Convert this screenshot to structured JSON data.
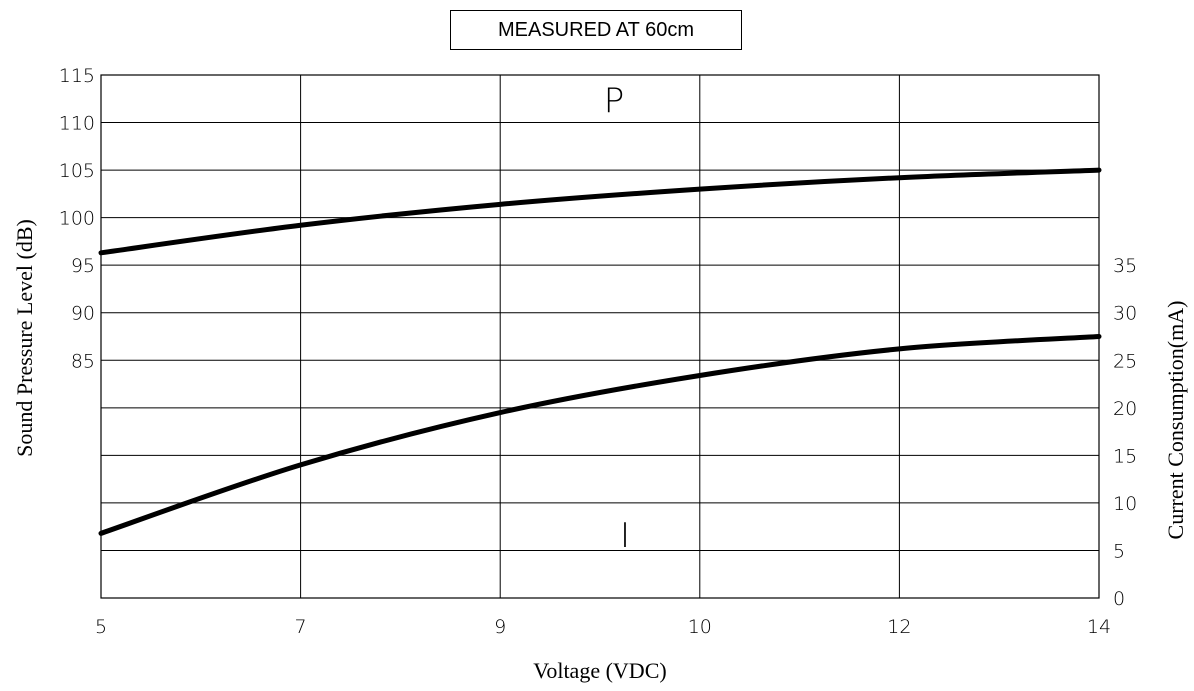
{
  "chart_data": {
    "type": "line",
    "title": "MEASURED AT 60cm",
    "xlabel": "Voltage (VDC)",
    "ylabel_left": "Sound Pressure Level (dB)",
    "ylabel_right": "Current Consumption(mA)",
    "x_ticks": [
      "5",
      "7",
      "9",
      "10",
      "12",
      "14"
    ],
    "y_left_ticks": [
      "115",
      "110",
      "105",
      "100",
      "95",
      "90",
      "85"
    ],
    "y_right_ticks": [
      "35",
      "30",
      "25",
      "20",
      "15",
      "10",
      "5",
      "0"
    ],
    "grid": true,
    "series": [
      {
        "name": "P",
        "axis": "left",
        "x": [
          "5",
          "7",
          "9",
          "10",
          "12",
          "14"
        ],
        "y": [
          96.3,
          99.2,
          101.4,
          103.0,
          104.2,
          105.0
        ]
      },
      {
        "name": "I",
        "axis": "right",
        "x": [
          "5",
          "7",
          "9",
          "10",
          "12",
          "14"
        ],
        "y": [
          6.8,
          14.0,
          19.5,
          23.4,
          26.2,
          27.5
        ]
      }
    ]
  }
}
